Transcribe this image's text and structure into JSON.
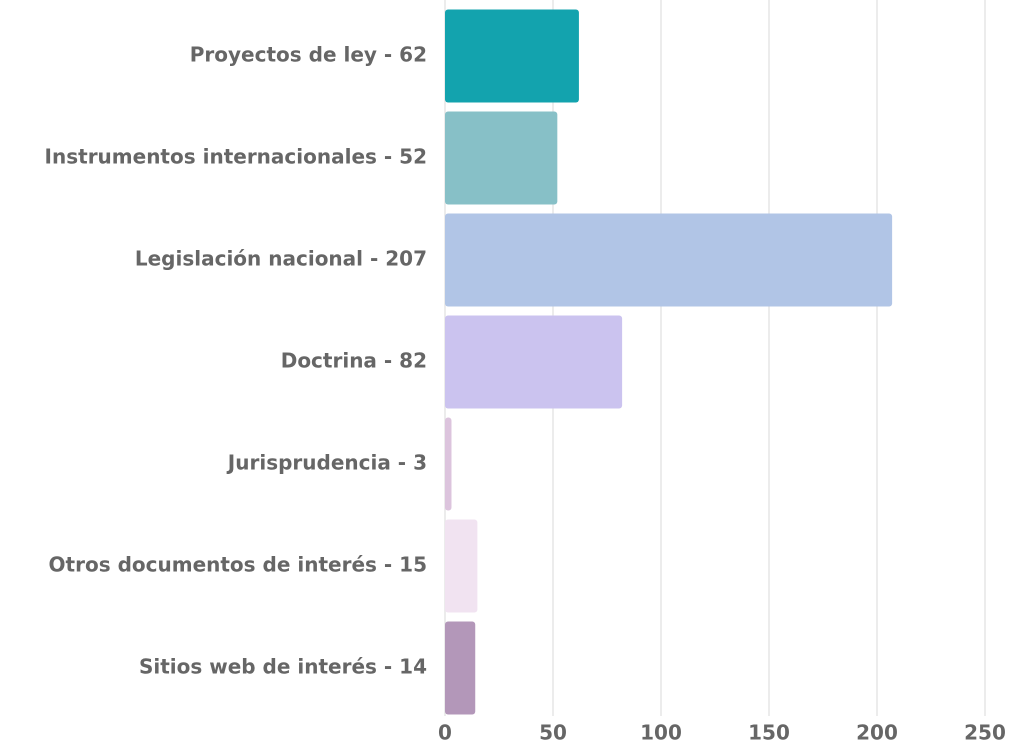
{
  "chart_data": {
    "type": "bar",
    "orientation": "horizontal",
    "categories": [
      "Proyectos de ley - 62",
      "Instrumentos internacionales - 52",
      "Legislación nacional - 207",
      "Doctrina - 82",
      "Jurisprudencia - 3",
      "Otros documentos de interés - 15",
      "Sitios web de interés - 14"
    ],
    "values": [
      62,
      52,
      207,
      82,
      3,
      15,
      14
    ],
    "colors": [
      "#13a3ae",
      "#87c0c7",
      "#b1c5e6",
      "#cbc3ef",
      "#dcc4dd",
      "#f1e3f1",
      "#b397b9"
    ],
    "xlim": [
      0,
      250
    ],
    "xticks": [
      0,
      50,
      100,
      150,
      200,
      250
    ],
    "grid": true
  }
}
